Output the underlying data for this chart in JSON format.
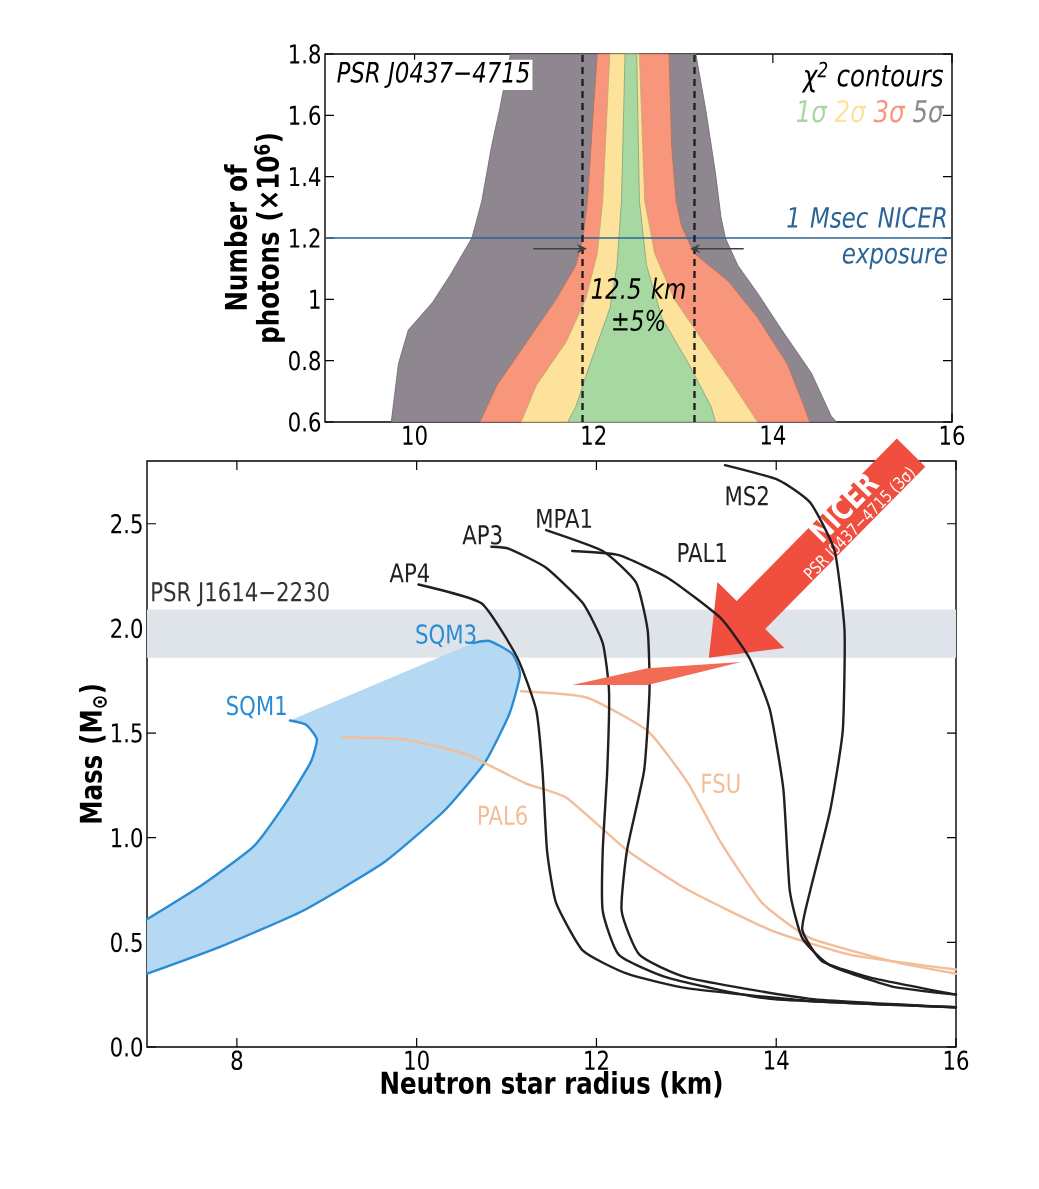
{
  "chart_data": [
    {
      "type": "area",
      "xlim": [
        9,
        16
      ],
      "ylim": [
        0.6,
        1.8
      ],
      "xticks": [
        10,
        12,
        14,
        16
      ],
      "yticks": [
        0.6,
        0.8,
        1,
        1.2,
        1.4,
        1.6,
        1.8
      ],
      "ylabel": "Number of photons (×10$^{6}$)",
      "legend": "top right",
      "legend_title": "χ$^{2}$ contours",
      "series": [
        {
          "name": "1σ",
          "color": "#a8d8a2",
          "x": [
            11.71,
            11.8,
            11.96,
            12.18,
            12.26,
            12.31,
            12.35,
            12.48,
            12.51,
            12.59,
            12.76,
            13.06,
            13.31,
            13.36
          ],
          "values": [
            0.6,
            0.65,
            0.79,
            0.97,
            1.11,
            1.32,
            1.8,
            1.8,
            1.32,
            1.11,
            0.94,
            0.79,
            0.65,
            0.6
          ]
        },
        {
          "name": "2σ",
          "color": "#fce29a",
          "x": [
            11.19,
            11.36,
            11.69,
            11.91,
            12.04,
            12.1,
            12.18,
            12.51,
            12.57,
            12.68,
            12.9,
            13.23,
            13.56,
            13.83
          ],
          "values": [
            0.6,
            0.72,
            0.86,
            1.0,
            1.15,
            1.32,
            1.8,
            1.8,
            1.32,
            1.15,
            1.0,
            0.86,
            0.72,
            0.6
          ]
        },
        {
          "name": "3σ",
          "color": "#f7967a",
          "x": [
            10.73,
            10.92,
            11.25,
            11.58,
            11.8,
            11.88,
            11.93,
            11.99,
            12.04,
            12.84,
            12.87,
            12.92,
            12.98,
            13.12,
            13.5,
            13.83,
            14.16,
            14.35,
            14.41
          ],
          "values": [
            0.6,
            0.72,
            0.86,
            1.0,
            1.11,
            1.2,
            1.32,
            1.59,
            1.8,
            1.8,
            1.5,
            1.32,
            1.24,
            1.15,
            1.06,
            0.94,
            0.79,
            0.65,
            0.6
          ]
        },
        {
          "name": "5σ",
          "color": "#8e8790",
          "x": [
            9.74,
            9.82,
            9.93,
            10.2,
            10.4,
            10.64,
            10.75,
            10.86,
            10.95,
            11.07,
            13.14,
            13.25,
            13.36,
            13.42,
            13.47,
            13.61,
            13.83,
            14.1,
            14.43,
            14.65,
            14.71
          ],
          "values": [
            0.6,
            0.79,
            0.9,
            0.99,
            1.08,
            1.2,
            1.32,
            1.5,
            1.62,
            1.8,
            1.8,
            1.62,
            1.41,
            1.27,
            1.2,
            1.11,
            1.02,
            0.9,
            0.76,
            0.62,
            0.6
          ]
        }
      ],
      "ref_lines": [
        {
          "axis": "y",
          "value": 1.2,
          "label": "1 Msec NICER exposure",
          "color": "#2a6496"
        },
        {
          "axis": "x",
          "value": 11.875,
          "line_style": "dashed",
          "color": "#231f20"
        },
        {
          "axis": "x",
          "value": 13.125,
          "line_style": "dashed",
          "color": "#231f20"
        }
      ],
      "annotations": [
        "PSR J0437−4715",
        "12.5 km ±5%"
      ]
    },
    {
      "type": "line",
      "xlim": [
        7,
        16
      ],
      "ylim": [
        0,
        2.8
      ],
      "xticks": [
        8,
        10,
        12,
        14,
        16
      ],
      "yticks": [
        {
          "value": 0,
          "label": "0.0"
        },
        0.5,
        {
          "value": 1,
          "label": "1.0"
        },
        1.5,
        {
          "value": 2,
          "label": "2.0"
        },
        2.5
      ],
      "xlabel": "Neutron star radius (km)",
      "ylabel": "Mass (M$_{⊙}$)",
      "legend": false,
      "bands": [
        {
          "axis": "y",
          "from": 1.86,
          "to": 2.09,
          "label": "PSR J1614−2230",
          "color": "#dfe4ea"
        }
      ],
      "series": [
        {
          "name": "SQM1",
          "color": "#2a8dd4",
          "x": [
            7.0,
            7.6,
            8.19,
            8.55,
            8.82,
            8.89,
            8.77,
            8.59
          ],
          "values": [
            0.61,
            0.77,
            0.96,
            1.17,
            1.36,
            1.47,
            1.54,
            1.56
          ]
        },
        {
          "name": "SQM3",
          "color": "#2a8dd4",
          "x": [
            7.0,
            7.82,
            8.73,
            9.63,
            10.31,
            10.76,
            11.03,
            11.15,
            11.06,
            10.81,
            10.63
          ],
          "values": [
            0.35,
            0.48,
            0.65,
            0.88,
            1.13,
            1.36,
            1.59,
            1.78,
            1.88,
            1.94,
            1.93
          ]
        },
        {
          "name": "PAL6",
          "color": "#f4bd9a",
          "x": [
            9.18,
            9.86,
            10.54,
            11.21,
            11.67,
            12.34,
            13.02,
            13.93,
            14.83,
            16.0
          ],
          "values": [
            1.48,
            1.47,
            1.4,
            1.26,
            1.19,
            0.94,
            0.75,
            0.56,
            0.44,
            0.37
          ]
        },
        {
          "name": "FSU",
          "color": "#f4bd9a",
          "x": [
            11.16,
            11.89,
            12.57,
            13.02,
            13.38,
            13.84,
            14.38,
            15.28,
            16.0
          ],
          "values": [
            1.7,
            1.67,
            1.51,
            1.26,
            0.98,
            0.69,
            0.52,
            0.41,
            0.35
          ]
        },
        {
          "name": "AP4",
          "color": "#231f20",
          "x": [
            10.02,
            10.72,
            11.12,
            11.33,
            11.4,
            11.45,
            11.55,
            11.85,
            12.34,
            13.02,
            14.38,
            16.0
          ],
          "values": [
            2.21,
            2.12,
            1.86,
            1.61,
            1.32,
            0.94,
            0.69,
            0.46,
            0.35,
            0.28,
            0.22,
            0.19
          ]
        },
        {
          "name": "AP3",
          "color": "#231f20",
          "x": [
            10.83,
            11.03,
            11.44,
            11.85,
            12.07,
            12.14,
            12.12,
            12.07,
            12.07,
            12.25,
            12.8,
            13.93,
            16.0
          ],
          "values": [
            2.39,
            2.38,
            2.29,
            2.12,
            1.93,
            1.7,
            1.32,
            0.94,
            0.65,
            0.44,
            0.33,
            0.23,
            0.19
          ]
        },
        {
          "name": "MPA1",
          "color": "#231f20",
          "x": [
            11.44,
            12.07,
            12.44,
            12.57,
            12.59,
            12.53,
            12.34,
            12.28,
            12.48,
            13.02,
            14.38,
            16.0
          ],
          "values": [
            2.47,
            2.37,
            2.22,
            1.99,
            1.7,
            1.32,
            0.94,
            0.65,
            0.44,
            0.33,
            0.23,
            0.19
          ]
        },
        {
          "name": "PAL1",
          "color": "#231f20",
          "x": [
            11.73,
            12.25,
            12.8,
            13.38,
            13.7,
            13.93,
            14.08,
            14.15,
            14.29,
            14.6,
            15.28,
            16.0
          ],
          "values": [
            2.37,
            2.35,
            2.24,
            2.05,
            1.86,
            1.61,
            1.23,
            0.75,
            0.52,
            0.39,
            0.29,
            0.25
          ]
        },
        {
          "name": "MS2",
          "color": "#231f20",
          "x": [
            13.43,
            14.02,
            14.38,
            14.65,
            14.76,
            14.74,
            14.6,
            14.38,
            14.29,
            14.51,
            15.06,
            16.0
          ],
          "values": [
            2.78,
            2.71,
            2.6,
            2.37,
            1.99,
            1.51,
            1.13,
            0.75,
            0.56,
            0.41,
            0.33,
            0.25
          ]
        },
        {
          "type": "area",
          "color": "#f26b55",
          "x": [
            11.73,
            12.57,
            13.61,
            12.57
          ],
          "values": [
            1.73,
            1.81,
            1.84,
            1.73
          ]
        }
      ],
      "annotations": [
        "NICER",
        "PSR J0437−4715 (3σ)"
      ]
    }
  ]
}
